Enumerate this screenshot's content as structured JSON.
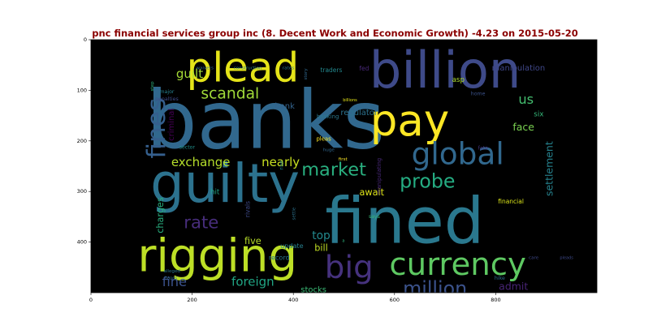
{
  "chart_data": {
    "type": "wordcloud",
    "title": "pnc financial services group inc (8. Decent Work and Economic Growth) -4.23 on 2015-05-20",
    "x_ticks": [
      "0",
      "200",
      "400",
      "600",
      "800"
    ],
    "y_ticks": [
      "0",
      "100",
      "200",
      "300",
      "400"
    ],
    "xlim": [
      0,
      1000
    ],
    "ylim": [
      500,
      0
    ],
    "words": [
      {
        "text": "banks",
        "x": 345,
        "y": 160,
        "size": 158,
        "color": "#31688e"
      },
      {
        "text": "fined",
        "x": 620,
        "y": 360,
        "size": 125,
        "color": "#2a788e"
      },
      {
        "text": "billion",
        "x": 700,
        "y": 60,
        "size": 100,
        "color": "#3e4a89"
      },
      {
        "text": "guilty",
        "x": 265,
        "y": 285,
        "size": 105,
        "color": "#2c728e"
      },
      {
        "text": "rigging",
        "x": 250,
        "y": 428,
        "size": 90,
        "color": "#bddf26"
      },
      {
        "text": "plead",
        "x": 300,
        "y": 55,
        "size": 80,
        "color": "#e5e419"
      },
      {
        "text": "pay",
        "x": 630,
        "y": 160,
        "size": 85,
        "color": "#fde725"
      },
      {
        "text": "currency",
        "x": 725,
        "y": 445,
        "size": 62,
        "color": "#5ec962"
      },
      {
        "text": "global",
        "x": 725,
        "y": 225,
        "size": 60,
        "color": "#31688e"
      },
      {
        "text": "big",
        "x": 510,
        "y": 450,
        "size": 62,
        "color": "#46327e"
      },
      {
        "text": "fines",
        "x": 130,
        "y": 175,
        "size": 50,
        "color": "#355f8d",
        "rot": -90
      },
      {
        "text": "million",
        "x": 680,
        "y": 492,
        "size": 38,
        "color": "#3b528b"
      },
      {
        "text": "probe",
        "x": 665,
        "y": 280,
        "size": 38,
        "color": "#25ac82"
      },
      {
        "text": "market",
        "x": 480,
        "y": 257,
        "size": 36,
        "color": "#29af7f"
      },
      {
        "text": "scandal",
        "x": 275,
        "y": 107,
        "size": 30,
        "color": "#a0da39"
      },
      {
        "text": "rate",
        "x": 218,
        "y": 362,
        "size": 34,
        "color": "#472d7b"
      },
      {
        "text": "exchange",
        "x": 217,
        "y": 242,
        "size": 24,
        "color": "#b5de2b"
      },
      {
        "text": "foreign",
        "x": 320,
        "y": 478,
        "size": 24,
        "color": "#21a685"
      },
      {
        "text": "fine",
        "x": 165,
        "y": 478,
        "size": 26,
        "color": "#3b528b"
      },
      {
        "text": "nearly",
        "x": 375,
        "y": 242,
        "size": 24,
        "color": "#c8e020"
      },
      {
        "text": "guilt",
        "x": 195,
        "y": 67,
        "size": 24,
        "color": "#a5db36"
      },
      {
        "text": "settlement",
        "x": 905,
        "y": 255,
        "size": 20,
        "color": "#26828e",
        "rot": -90
      },
      {
        "text": "us",
        "x": 860,
        "y": 118,
        "size": 26,
        "color": "#44bf70"
      },
      {
        "text": "face",
        "x": 855,
        "y": 172,
        "size": 20,
        "color": "#7ad151"
      },
      {
        "text": "admit",
        "x": 835,
        "y": 487,
        "size": 20,
        "color": "#482475"
      },
      {
        "text": "top",
        "x": 455,
        "y": 388,
        "size": 22,
        "color": "#23898e"
      },
      {
        "text": "await",
        "x": 555,
        "y": 302,
        "size": 18,
        "color": "#dde318"
      },
      {
        "text": "criminal",
        "x": 160,
        "y": 168,
        "size": 16,
        "color": "#440154",
        "rot": -90
      },
      {
        "text": "charges",
        "x": 137,
        "y": 347,
        "size": 18,
        "color": "#29af7f",
        "rot": -90
      },
      {
        "text": "bill",
        "x": 455,
        "y": 412,
        "size": 18,
        "color": "#c2df23"
      },
      {
        "text": "five",
        "x": 320,
        "y": 398,
        "size": 18,
        "color": "#b8de29"
      },
      {
        "text": "stocks",
        "x": 440,
        "y": 495,
        "size": 16,
        "color": "#3aba76"
      },
      {
        "text": "markets",
        "x": 205,
        "y": 507,
        "size": 14,
        "color": "#2db27d"
      },
      {
        "text": "bank",
        "x": 383,
        "y": 132,
        "size": 16,
        "color": "#33638d"
      },
      {
        "text": "regulator",
        "x": 530,
        "y": 145,
        "size": 16,
        "color": "#2c728e"
      },
      {
        "text": "manipulation",
        "x": 845,
        "y": 57,
        "size": 16,
        "color": "#3f4788"
      },
      {
        "text": "asp",
        "x": 726,
        "y": 80,
        "size": 14,
        "color": "#addc30"
      },
      {
        "text": "financial",
        "x": 830,
        "y": 320,
        "size": 12,
        "color": "#d8e219"
      },
      {
        "text": "six",
        "x": 885,
        "y": 148,
        "size": 14,
        "color": "#35b779"
      },
      {
        "text": "hit",
        "x": 245,
        "y": 302,
        "size": 14,
        "color": "#20a486"
      },
      {
        "text": "update",
        "x": 397,
        "y": 407,
        "size": 13,
        "color": "#277f8e"
      },
      {
        "text": "record",
        "x": 372,
        "y": 430,
        "size": 13,
        "color": "#2a788e"
      },
      {
        "text": "rivals",
        "x": 310,
        "y": 335,
        "size": 12,
        "color": "#3e4a89",
        "rot": -90
      },
      {
        "text": "manipulating",
        "x": 570,
        "y": 270,
        "size": 11,
        "color": "#482878",
        "rot": -90
      },
      {
        "text": "banking",
        "x": 468,
        "y": 152,
        "size": 11,
        "color": "#2a788e"
      },
      {
        "text": "pleas",
        "x": 460,
        "y": 196,
        "size": 11,
        "color": "#fde725"
      },
      {
        "text": "first",
        "x": 498,
        "y": 237,
        "size": 9,
        "color": "#fde725"
      },
      {
        "text": "traders",
        "x": 475,
        "y": 60,
        "size": 12,
        "color": "#23898e"
      },
      {
        "text": "fed",
        "x": 540,
        "y": 57,
        "size": 12,
        "color": "#482878"
      },
      {
        "text": "rise",
        "x": 377,
        "y": 248,
        "size": 10,
        "color": "#25858e",
        "rot": -90
      },
      {
        "text": "settle",
        "x": 402,
        "y": 344,
        "size": 9,
        "color": "#2c728e",
        "rot": -90
      },
      {
        "text": "says",
        "x": 560,
        "y": 350,
        "size": 10,
        "color": "#37b878"
      },
      {
        "text": "hike",
        "x": 808,
        "y": 472,
        "size": 10,
        "color": "#2e6e8e"
      },
      {
        "text": "fate",
        "x": 775,
        "y": 215,
        "size": 10,
        "color": "#453781"
      },
      {
        "text": "home",
        "x": 765,
        "y": 107,
        "size": 10,
        "color": "#3b528b"
      },
      {
        "text": "sector",
        "x": 190,
        "y": 213,
        "size": 10,
        "color": "#21918c"
      },
      {
        "text": "huge",
        "x": 470,
        "y": 219,
        "size": 9,
        "color": "#31688e"
      },
      {
        "text": "major",
        "x": 150,
        "y": 103,
        "size": 10,
        "color": "#26818e"
      },
      {
        "text": "penalties",
        "x": 150,
        "y": 118,
        "size": 10,
        "color": "#3e4c8a"
      },
      {
        "text": "alleged",
        "x": 160,
        "y": 458,
        "size": 9,
        "color": "#2a788e"
      },
      {
        "text": "hopes",
        "x": 158,
        "y": 472,
        "size": 8,
        "color": "#31688e"
      },
      {
        "text": "construction",
        "x": 310,
        "y": 57,
        "size": 9,
        "color": "#287d8e"
      },
      {
        "text": "rates",
        "x": 390,
        "y": 57,
        "size": 9,
        "color": "#2a788e"
      },
      {
        "text": "waivers",
        "x": 225,
        "y": 57,
        "size": 9,
        "color": "#31688e"
      },
      {
        "text": "step",
        "x": 122,
        "y": 92,
        "size": 9,
        "color": "#2db27d",
        "rot": -90
      },
      {
        "text": "story",
        "x": 425,
        "y": 68,
        "size": 9,
        "color": "#31688e",
        "rot": -90
      },
      {
        "text": "billions",
        "x": 512,
        "y": 120,
        "size": 8,
        "color": "#e5e419"
      },
      {
        "text": "care",
        "x": 875,
        "y": 432,
        "size": 9,
        "color": "#3e4989"
      },
      {
        "text": "pleads",
        "x": 940,
        "y": 432,
        "size": 8,
        "color": "#3e4989"
      },
      {
        "text": "a",
        "x": 499,
        "y": 398,
        "size": 8,
        "color": "#2fb47c"
      }
    ]
  }
}
